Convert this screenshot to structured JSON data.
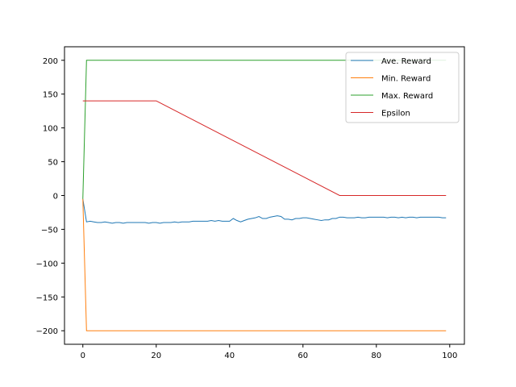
{
  "chart_data": {
    "type": "line",
    "xlim": [
      -5,
      104
    ],
    "ylim": [
      -220,
      220
    ],
    "xticks": [
      0,
      20,
      40,
      60,
      80,
      100
    ],
    "yticks": [
      -200,
      -150,
      -100,
      -50,
      0,
      50,
      100,
      150,
      200
    ],
    "xtick_labels": [
      "0",
      "20",
      "40",
      "60",
      "80",
      "100"
    ],
    "ytick_labels": [
      "−200",
      "−150",
      "−100",
      "−50",
      "0",
      "50",
      "100",
      "150",
      "200"
    ],
    "grid": false,
    "legend_position": "top-right",
    "series": [
      {
        "name": "Ave. Reward",
        "color": "#1f77b4",
        "x": [
          0,
          1,
          2,
          3,
          4,
          5,
          6,
          7,
          8,
          9,
          10,
          11,
          12,
          13,
          14,
          15,
          16,
          17,
          18,
          19,
          20,
          21,
          22,
          23,
          24,
          25,
          26,
          27,
          28,
          29,
          30,
          31,
          32,
          33,
          34,
          35,
          36,
          37,
          38,
          39,
          40,
          41,
          42,
          43,
          44,
          45,
          46,
          47,
          48,
          49,
          50,
          51,
          52,
          53,
          54,
          55,
          56,
          57,
          58,
          59,
          60,
          61,
          62,
          63,
          64,
          65,
          66,
          67,
          68,
          69,
          70,
          71,
          72,
          73,
          74,
          75,
          76,
          77,
          78,
          79,
          80,
          81,
          82,
          83,
          84,
          85,
          86,
          87,
          88,
          89,
          90,
          91,
          92,
          93,
          94,
          95,
          96,
          97,
          98,
          99
        ],
        "y": [
          -5,
          -39,
          -38,
          -39,
          -40,
          -40,
          -39,
          -40,
          -41,
          -40,
          -40,
          -41,
          -40,
          -40,
          -40,
          -40,
          -40,
          -40,
          -41,
          -40,
          -40,
          -41,
          -40,
          -40,
          -40,
          -39,
          -40,
          -39,
          -39,
          -39,
          -38,
          -38,
          -38,
          -38,
          -38,
          -37,
          -38,
          -37,
          -38,
          -38,
          -38,
          -34,
          -37,
          -39,
          -37,
          -35,
          -34,
          -33,
          -31,
          -34,
          -34,
          -32,
          -31,
          -30,
          -31,
          -35,
          -35,
          -36,
          -34,
          -34,
          -33,
          -33,
          -34,
          -35,
          -36,
          -37,
          -36,
          -36,
          -34,
          -34,
          -32,
          -32,
          -33,
          -33,
          -33,
          -32,
          -33,
          -33,
          -32,
          -32,
          -32,
          -32,
          -32,
          -33,
          -32,
          -32,
          -33,
          -32,
          -33,
          -32,
          -32,
          -33,
          -32,
          -32,
          -32,
          -32,
          -32,
          -32,
          -33,
          -33
        ]
      },
      {
        "name": "Min. Reward",
        "color": "#ff7f0e",
        "x": [
          0,
          1,
          99
        ],
        "y": [
          -5,
          -200,
          -200
        ]
      },
      {
        "name": "Max. Reward",
        "color": "#2ca02c",
        "x": [
          0,
          1,
          99
        ],
        "y": [
          -5,
          200,
          200
        ]
      },
      {
        "name": "Epsilon",
        "color": "#d62728",
        "x": [
          0,
          20,
          70,
          99
        ],
        "y": [
          140,
          140,
          0,
          0
        ]
      }
    ]
  }
}
